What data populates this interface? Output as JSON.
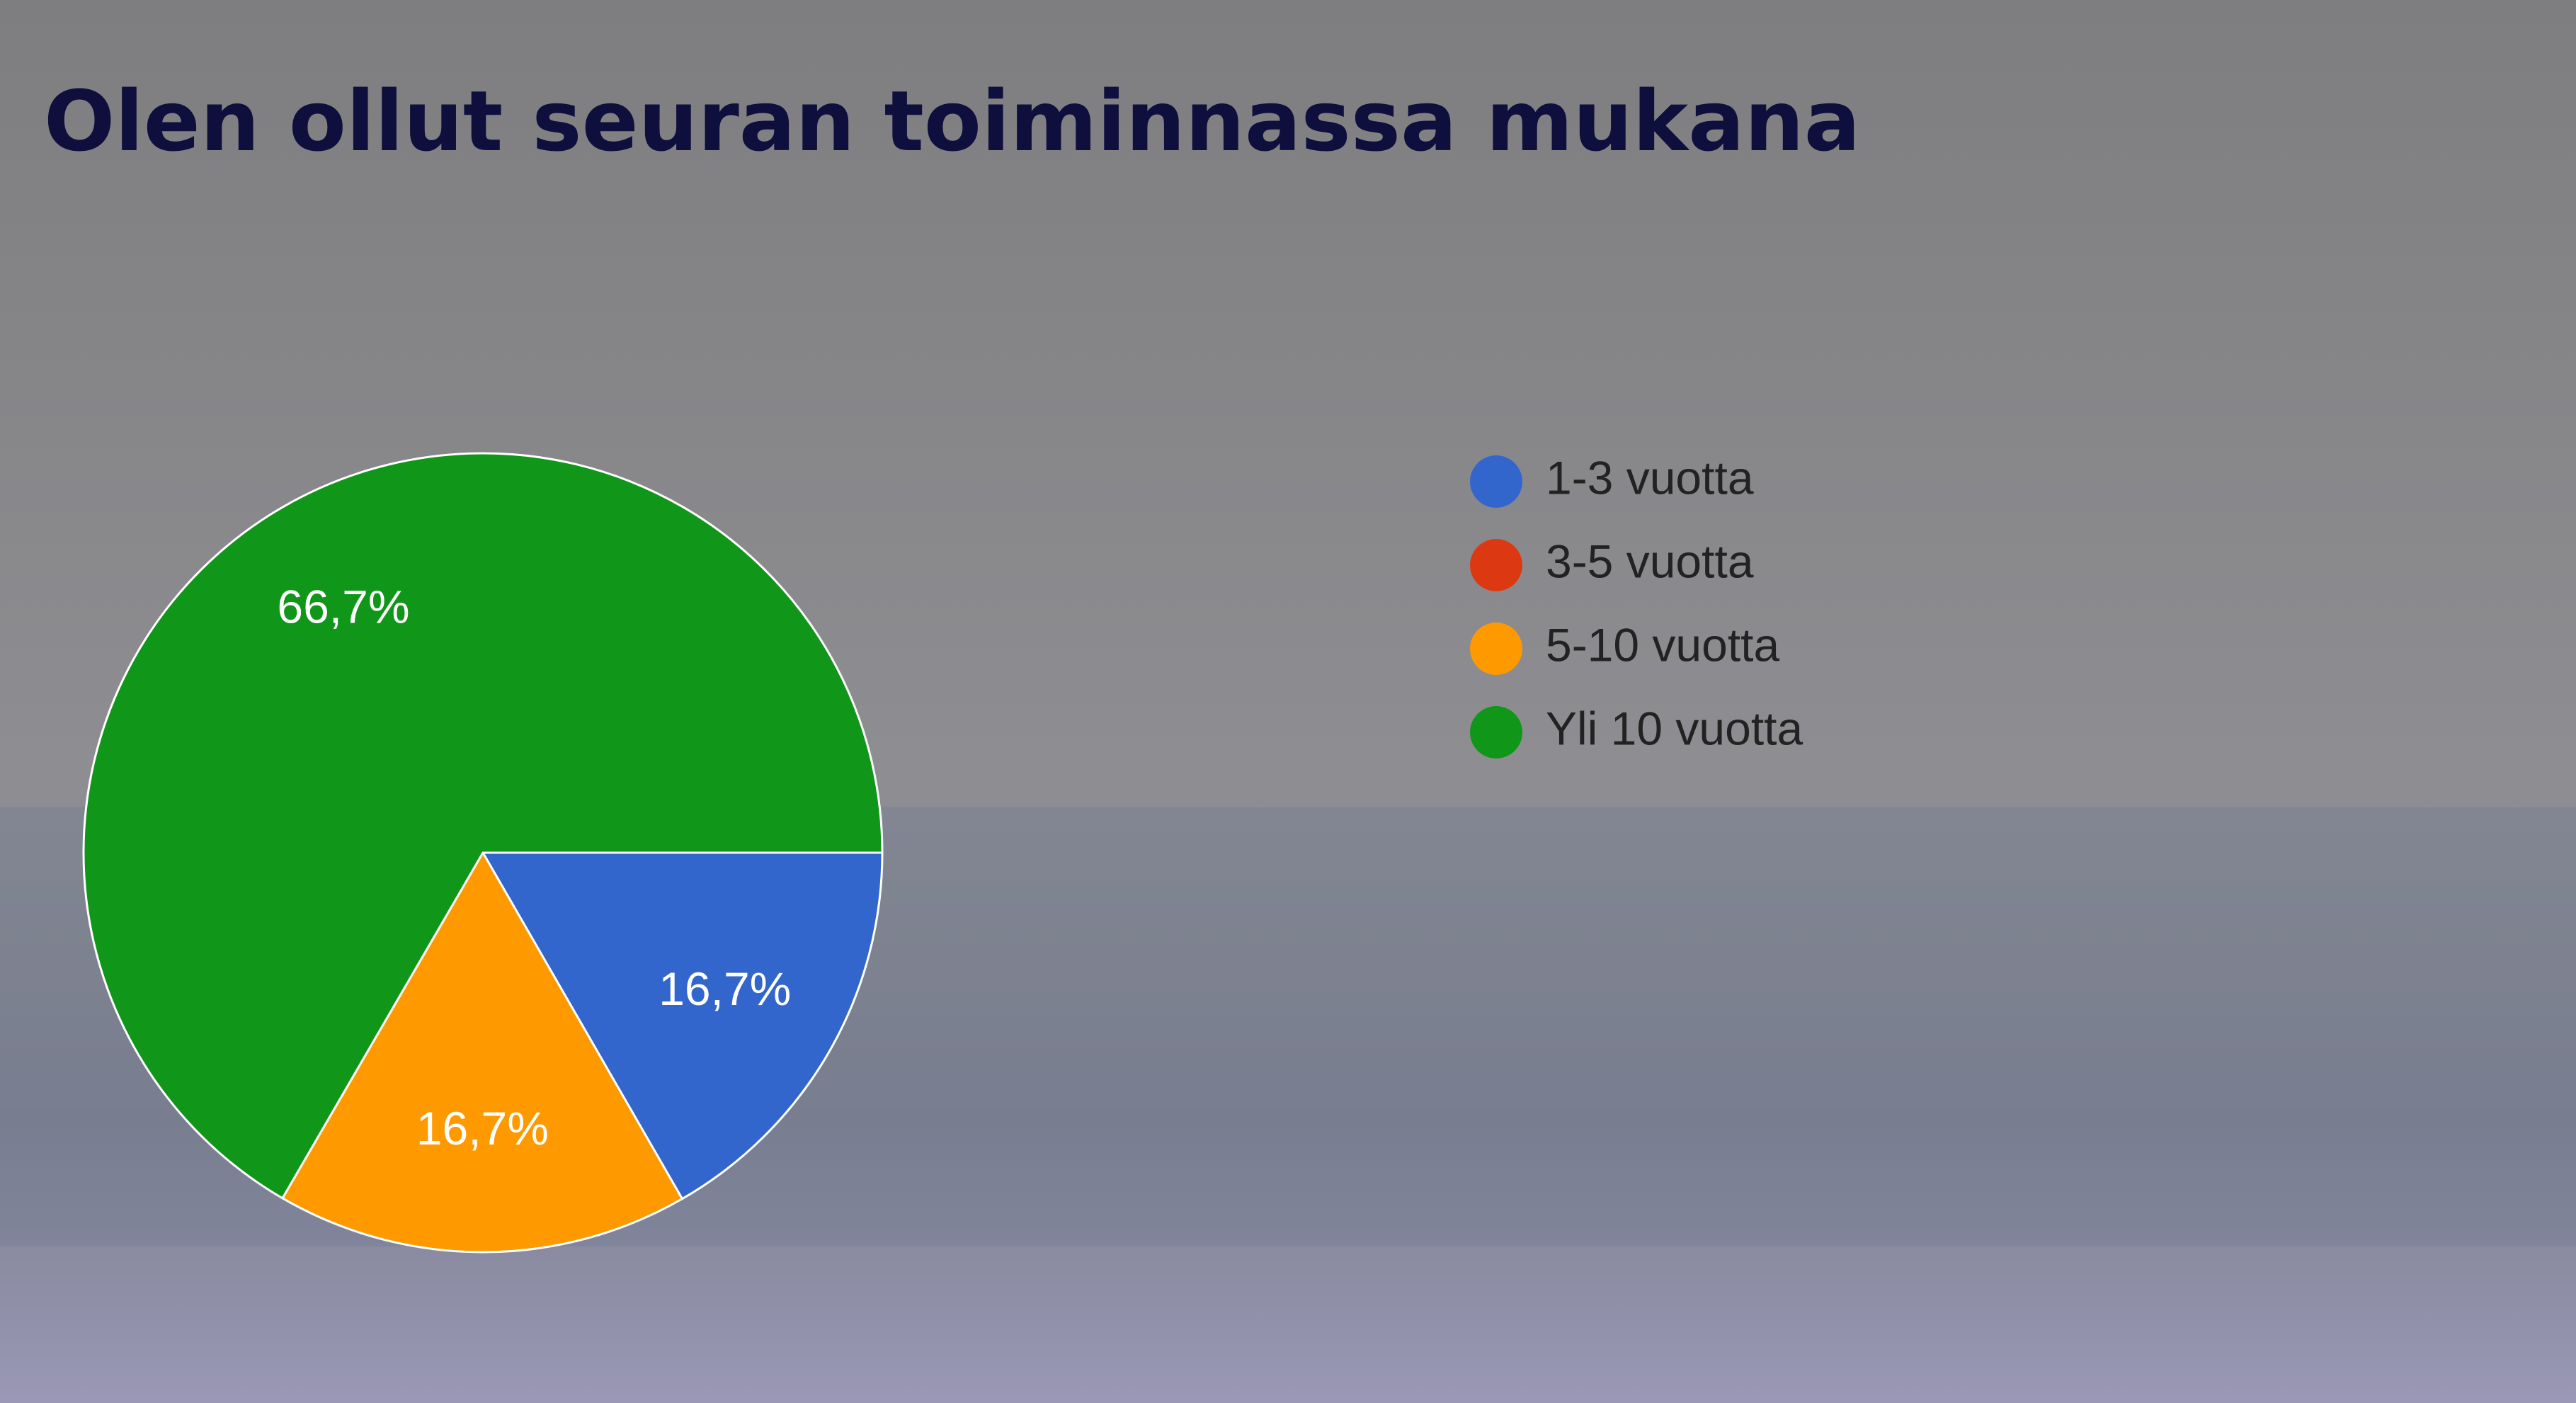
{
  "chart_data": {
    "type": "pie",
    "title": "Olen ollut seuran toiminnassa mukana",
    "categories": [
      "1-3 vuotta",
      "3-5 vuotta",
      "5-10 vuotta",
      "Yli 10 vuotta"
    ],
    "values": [
      16.7,
      0,
      16.7,
      66.7
    ],
    "value_labels": [
      "16,7%",
      null,
      "16,7%",
      "66,7%"
    ],
    "colors": [
      "#3366cc",
      "#dc3912",
      "#ff9900",
      "#109618"
    ],
    "legend": "right"
  }
}
